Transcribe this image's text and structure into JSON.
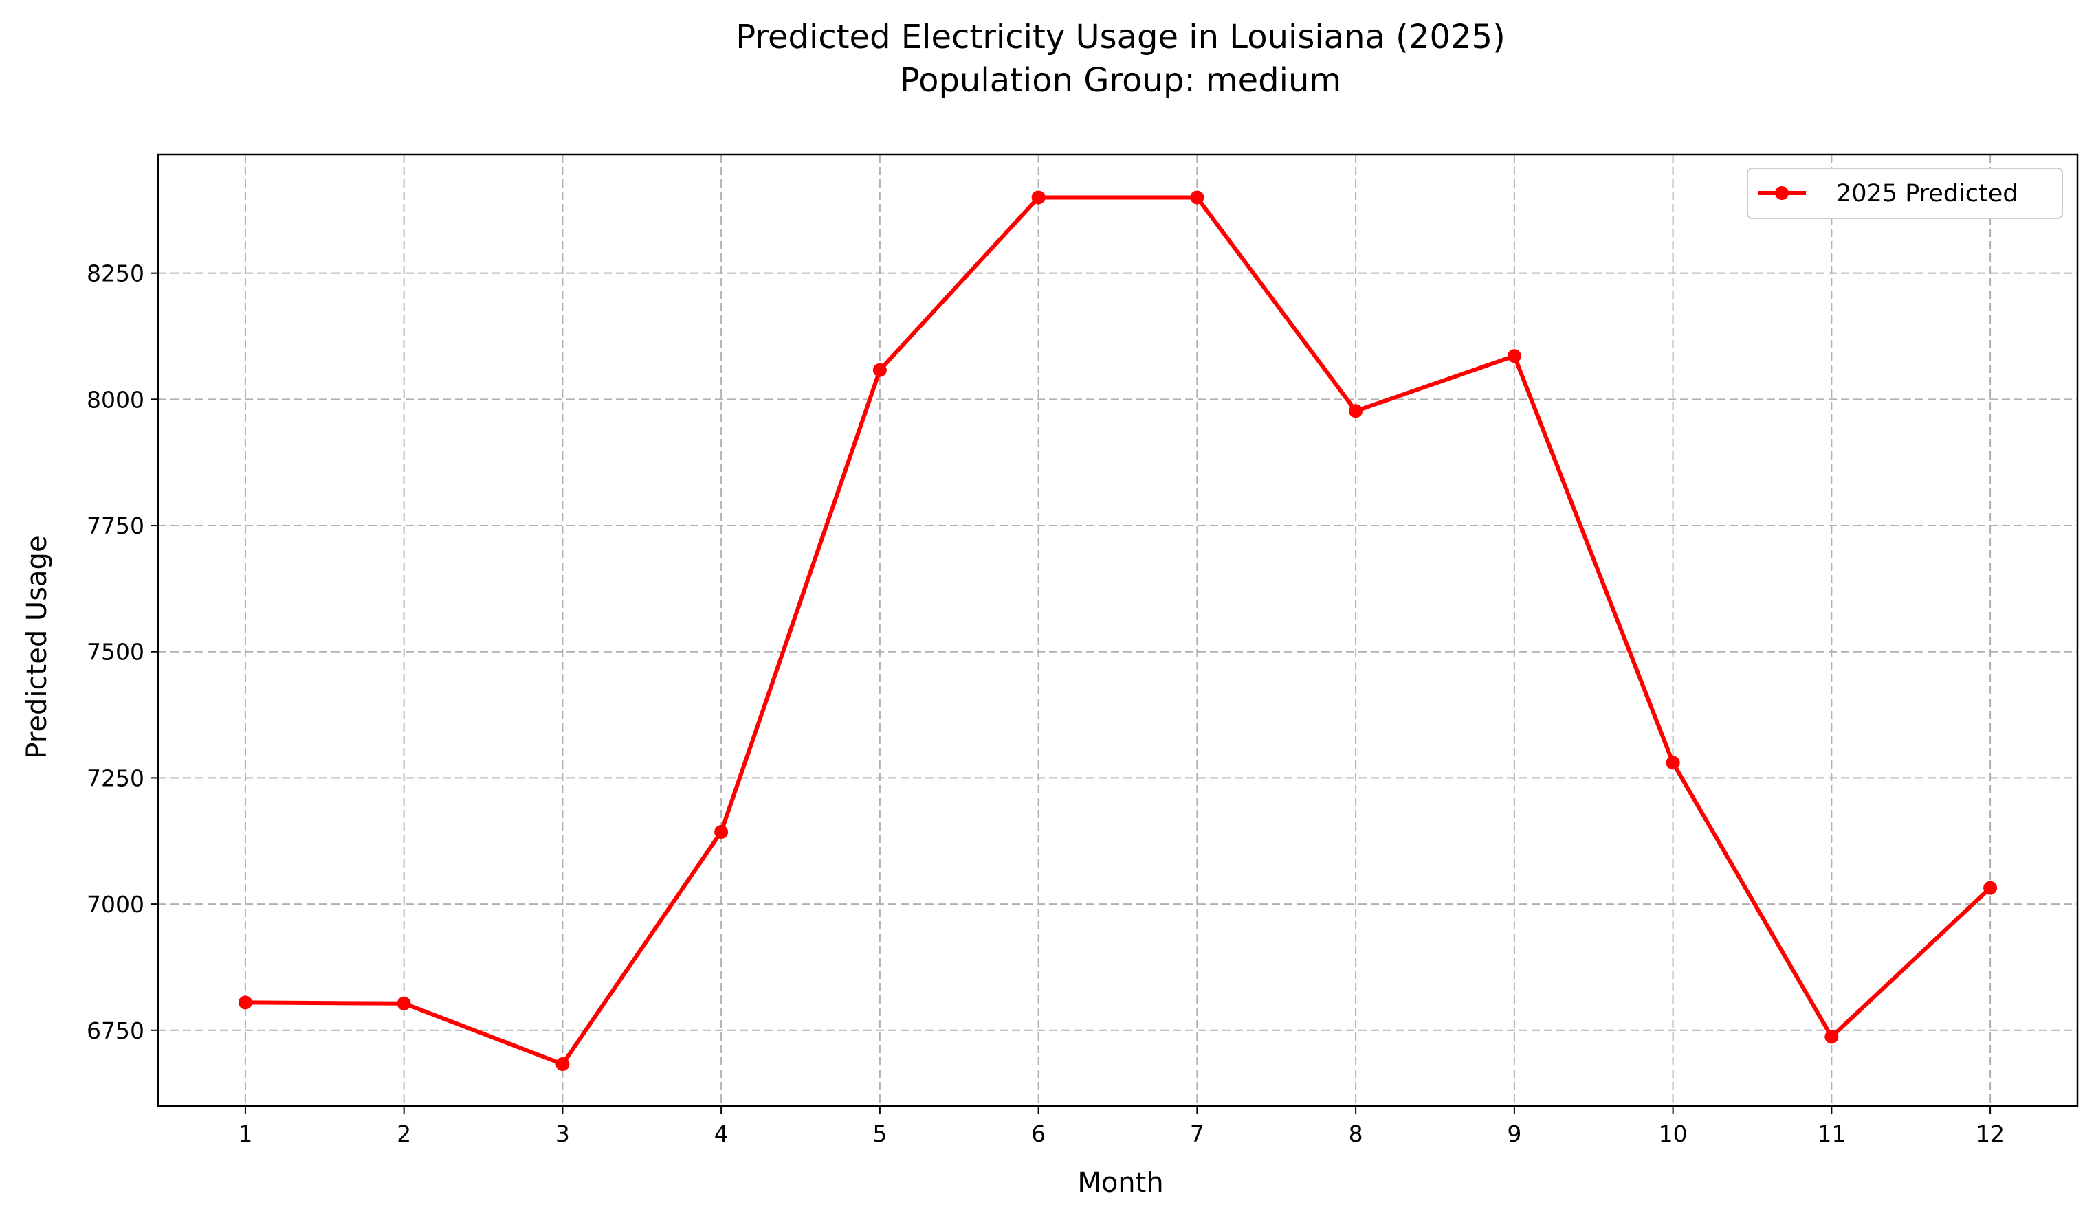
{
  "chart_data": {
    "type": "line",
    "title": "Predicted Electricity Usage in Louisiana (2025)",
    "subtitle": "Population Group: medium",
    "xlabel": "Month",
    "ylabel": "Predicted Usage",
    "x": [
      1,
      2,
      3,
      4,
      5,
      6,
      7,
      8,
      9,
      10,
      11,
      12
    ],
    "xticks": [
      "1",
      "2",
      "3",
      "4",
      "5",
      "6",
      "7",
      "8",
      "9",
      "10",
      "11",
      "12"
    ],
    "xlim": [
      0.45,
      12.55
    ],
    "yticks": [
      6750,
      7000,
      7250,
      7500,
      7750,
      8000,
      8250
    ],
    "ylim": [
      6600,
      8485
    ],
    "grid": true,
    "legend_position": "top-right",
    "series": [
      {
        "name": "2025 Predicted",
        "color": "#ff0000",
        "marker": "circle",
        "values": [
          6805,
          6803,
          6683,
          7143,
          8058,
          8400,
          8400,
          7977,
          8086,
          7280,
          6737,
          7032
        ]
      }
    ]
  }
}
